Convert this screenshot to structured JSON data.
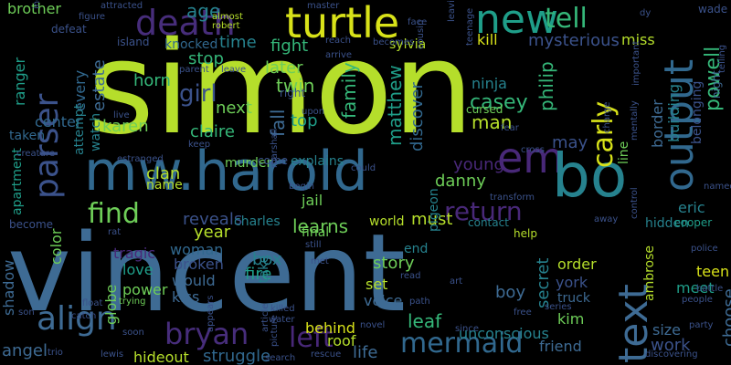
{
  "palette": {
    "background": "#000000",
    "lime": "#b5de2b",
    "yellowgreen": "#d8e219",
    "green": "#6ece58",
    "teal": "#1f9e89",
    "teal2": "#26828e",
    "blue": "#3e6b94",
    "steel": "#31688e",
    "indigo": "#472d7b",
    "purple": "#482878",
    "darkpurple": "#440154",
    "navy": "#3b528b",
    "seafoam": "#35b779"
  },
  "words": [
    {
      "text": "simon",
      "color": "#b5de2b"
    },
    {
      "text": "vincent",
      "color": "#3e6b94"
    },
    {
      "text": "mw.harold",
      "color": "#31688e"
    },
    {
      "text": "turtle",
      "color": "#d8e219"
    },
    {
      "text": "death",
      "color": "#472d7b"
    },
    {
      "text": "new",
      "color": "#1f9e89"
    },
    {
      "text": "tell",
      "color": "#35b779"
    },
    {
      "text": "parser",
      "color": "#3b528b"
    },
    {
      "text": "output",
      "color": "#31688e"
    },
    {
      "text": "em",
      "color": "#482878"
    },
    {
      "text": "bo",
      "color": "#26828e"
    },
    {
      "text": "text",
      "color": "#3e6b94"
    },
    {
      "text": "find",
      "color": "#6ece58"
    },
    {
      "text": "return",
      "color": "#482878"
    },
    {
      "text": "carly",
      "color": "#d8e219"
    },
    {
      "text": "align",
      "color": "#3e6b94"
    },
    {
      "text": "bryan",
      "color": "#472d7b"
    },
    {
      "text": "mermaid",
      "color": "#31688e"
    },
    {
      "text": "left",
      "color": "#482878"
    },
    {
      "text": "girl",
      "color": "#3b528b"
    },
    {
      "text": "brother",
      "color": "#6ece58"
    },
    {
      "text": "fight",
      "color": "#35b779"
    },
    {
      "text": "kill",
      "color": "#d8e219"
    },
    {
      "text": "mysterious",
      "color": "#3b528b"
    },
    {
      "text": "miss",
      "color": "#b5de2b"
    },
    {
      "text": "powell",
      "color": "#35b779"
    },
    {
      "text": "age",
      "color": "#26828e"
    },
    {
      "text": "stop",
      "color": "#35b779"
    },
    {
      "text": "time",
      "color": "#26828e"
    },
    {
      "text": "later",
      "color": "#6ece58"
    },
    {
      "text": "twin",
      "color": "#6ece58"
    },
    {
      "text": "top",
      "color": "#1f9e89"
    },
    {
      "text": "fall",
      "color": "#3e6b94"
    },
    {
      "text": "family",
      "color": "#35b779"
    },
    {
      "text": "matthew",
      "color": "#1f9e89"
    },
    {
      "text": "discover",
      "color": "#31688e"
    },
    {
      "text": "ninja",
      "color": "#26828e"
    },
    {
      "text": "casey",
      "color": "#35b779"
    },
    {
      "text": "man",
      "color": "#b5de2b"
    },
    {
      "text": "philip",
      "color": "#35b779"
    },
    {
      "text": "horn",
      "color": "#35b779"
    },
    {
      "text": "next",
      "color": "#6ece58"
    },
    {
      "text": "claire",
      "color": "#35b779"
    },
    {
      "text": "karen",
      "color": "#6ece58"
    },
    {
      "text": "center",
      "color": "#31688e"
    },
    {
      "text": "ranger",
      "color": "#1f9e89"
    },
    {
      "text": "every",
      "color": "#31688e"
    },
    {
      "text": "estate",
      "color": "#3e6b94"
    },
    {
      "text": "watch",
      "color": "#26828e"
    },
    {
      "text": "attempt",
      "color": "#26828e"
    },
    {
      "text": "apartment",
      "color": "#1f9e89"
    },
    {
      "text": "may",
      "color": "#3b528b"
    },
    {
      "text": "young",
      "color": "#482878"
    },
    {
      "text": "danny",
      "color": "#6ece58"
    },
    {
      "text": "border",
      "color": "#3e6b94"
    },
    {
      "text": "building",
      "color": "#26828e"
    },
    {
      "text": "belonging",
      "color": "#3b528b"
    },
    {
      "text": "line",
      "color": "#6ece58"
    },
    {
      "text": "murder",
      "color": "#6ece58"
    },
    {
      "text": "clan",
      "color": "#b5de2b"
    },
    {
      "text": "name",
      "color": "#b5de2b"
    },
    {
      "text": "explains",
      "color": "#26828e"
    },
    {
      "text": "jail",
      "color": "#6ece58"
    },
    {
      "text": "learns",
      "color": "#6ece58"
    },
    {
      "text": "reveals",
      "color": "#3b528b"
    },
    {
      "text": "charles",
      "color": "#26828e"
    },
    {
      "text": "world",
      "color": "#b5de2b"
    },
    {
      "text": "must",
      "color": "#b5de2b"
    },
    {
      "text": "contact",
      "color": "#26828e"
    },
    {
      "text": "hidden",
      "color": "#26828e"
    },
    {
      "text": "eric",
      "color": "#26828e"
    },
    {
      "text": "cooper",
      "color": "#1f9e89"
    },
    {
      "text": "year",
      "color": "#b5de2b"
    },
    {
      "text": "woman",
      "color": "#31688e"
    },
    {
      "text": "tragic",
      "color": "#482878"
    },
    {
      "text": "broken",
      "color": "#3b528b"
    },
    {
      "text": "love",
      "color": "#1f9e89"
    },
    {
      "text": "power",
      "color": "#6ece58"
    },
    {
      "text": "would",
      "color": "#3e6b94"
    },
    {
      "text": "kiss",
      "color": "#3e6b94"
    },
    {
      "text": "fire",
      "color": "#1f9e89"
    },
    {
      "text": "box",
      "color": "#26828e"
    },
    {
      "text": "take",
      "color": "#26828e"
    },
    {
      "text": "behind",
      "color": "#d8e219"
    },
    {
      "text": "roof",
      "color": "#b5de2b"
    },
    {
      "text": "story",
      "color": "#6ece58"
    },
    {
      "text": "set",
      "color": "#b5de2b"
    },
    {
      "text": "voice",
      "color": "#3e6b94"
    },
    {
      "text": "leaf",
      "color": "#35b779"
    },
    {
      "text": "end",
      "color": "#26828e"
    },
    {
      "text": "boy",
      "color": "#3e6b94"
    },
    {
      "text": "secret",
      "color": "#26828e"
    },
    {
      "text": "order",
      "color": "#b5de2b"
    },
    {
      "text": "york",
      "color": "#3b528b"
    },
    {
      "text": "truck",
      "color": "#3e6b94"
    },
    {
      "text": "kim",
      "color": "#6ece58"
    },
    {
      "text": "unconscious",
      "color": "#26828e"
    },
    {
      "text": "friend",
      "color": "#3e6b94"
    },
    {
      "text": "life",
      "color": "#3e6b94"
    },
    {
      "text": "meet",
      "color": "#1f9e89"
    },
    {
      "text": "teen",
      "color": "#d8e219"
    },
    {
      "text": "size",
      "color": "#3e6b94"
    },
    {
      "text": "work",
      "color": "#3b528b"
    },
    {
      "text": "choose",
      "color": "#3e6b94"
    },
    {
      "text": "ambrose",
      "color": "#b5de2b"
    },
    {
      "text": "shadow",
      "color": "#3e6b94"
    },
    {
      "text": "color",
      "color": "#6ece58"
    },
    {
      "text": "angel",
      "color": "#3e6b94"
    },
    {
      "text": "globe",
      "color": "#6ece58"
    },
    {
      "text": "struggle",
      "color": "#31688e"
    },
    {
      "text": "hideout",
      "color": "#b5de2b"
    },
    {
      "text": "become",
      "color": "#3b528b"
    },
    {
      "text": "knocked",
      "color": "#31688e"
    },
    {
      "text": "sylvia",
      "color": "#b5de2b"
    },
    {
      "text": "pigeon",
      "color": "#26828e"
    },
    {
      "text": "cursed",
      "color": "#6ece58"
    },
    {
      "text": "help",
      "color": "#b5de2b"
    },
    {
      "text": "taken",
      "color": "#31688e"
    },
    {
      "text": "island",
      "color": "#3b528b"
    },
    {
      "text": "defeat",
      "color": "#3b528b"
    },
    {
      "text": "figure",
      "color": "#3b528b"
    },
    {
      "text": "attracted",
      "color": "#3b528b"
    },
    {
      "text": "almost",
      "color": "#b5de2b"
    },
    {
      "text": "robert",
      "color": "#b5de2b"
    },
    {
      "text": "master",
      "color": "#3b528b"
    },
    {
      "text": "face",
      "color": "#3b528b"
    },
    {
      "text": "leaving",
      "color": "#3b528b"
    },
    {
      "text": "teenage",
      "color": "#3b528b"
    },
    {
      "text": "wade",
      "color": "#3b528b"
    },
    {
      "text": "night",
      "color": "#3e6b94"
    },
    {
      "text": "telling",
      "color": "#3b528b"
    },
    {
      "text": "named",
      "color": "#3b528b"
    },
    {
      "text": "police",
      "color": "#3b528b"
    },
    {
      "text": "people",
      "color": "#3b528b"
    },
    {
      "text": "party",
      "color": "#3b528b"
    },
    {
      "text": "discovering",
      "color": "#3b528b"
    },
    {
      "text": "rescue",
      "color": "#3b528b"
    },
    {
      "text": "search",
      "color": "#3b528b"
    },
    {
      "text": "trio",
      "color": "#3b528b"
    },
    {
      "text": "lewis",
      "color": "#3b528b"
    },
    {
      "text": "son",
      "color": "#3b528b"
    },
    {
      "text": "soon",
      "color": "#3b528b"
    },
    {
      "text": "catch",
      "color": "#3b528b"
    },
    {
      "text": "float",
      "color": "#3b528b"
    },
    {
      "text": "trying",
      "color": "#6ece58"
    },
    {
      "text": "appears",
      "color": "#3b528b"
    },
    {
      "text": "killed",
      "color": "#3b528b"
    },
    {
      "text": "article",
      "color": "#3b528b"
    },
    {
      "text": "picture",
      "color": "#3b528b"
    },
    {
      "text": "water",
      "color": "#3b528b"
    },
    {
      "text": "free",
      "color": "#3b528b"
    },
    {
      "text": "series",
      "color": "#3b528b"
    },
    {
      "text": "since",
      "color": "#3b528b"
    },
    {
      "text": "path",
      "color": "#3b528b"
    },
    {
      "text": "read",
      "color": "#3b528b"
    },
    {
      "text": "novel",
      "color": "#3b528b"
    },
    {
      "text": "art",
      "color": "#3b528b"
    },
    {
      "text": "still",
      "color": "#3b528b"
    },
    {
      "text": "met",
      "color": "#3b528b"
    },
    {
      "text": "rat",
      "color": "#3b528b"
    },
    {
      "text": "creature",
      "color": "#3b528b"
    },
    {
      "text": "estranged",
      "color": "#3b528b"
    },
    {
      "text": "keep",
      "color": "#3b528b"
    },
    {
      "text": "parent",
      "color": "#3b528b"
    },
    {
      "text": "leave",
      "color": "#3b528b"
    },
    {
      "text": "arrive",
      "color": "#3b528b"
    },
    {
      "text": "reach",
      "color": "#3b528b"
    },
    {
      "text": "becomes",
      "color": "#3b528b"
    },
    {
      "text": "cousin",
      "color": "#3b528b"
    },
    {
      "text": "fear",
      "color": "#3b528b"
    },
    {
      "text": "cross",
      "color": "#3b528b"
    },
    {
      "text": "could",
      "color": "#3b528b"
    },
    {
      "text": "transform",
      "color": "#3b528b"
    },
    {
      "text": "away",
      "color": "#3b528b"
    },
    {
      "text": "important",
      "color": "#3b528b"
    },
    {
      "text": "mentally",
      "color": "#3b528b"
    },
    {
      "text": "charge",
      "color": "#3b528b"
    },
    {
      "text": "control",
      "color": "#3b528b"
    },
    {
      "text": "battle",
      "color": "#3b528b"
    },
    {
      "text": "live",
      "color": "#3b528b"
    },
    {
      "text": "come",
      "color": "#3b528b"
    },
    {
      "text": "marshall",
      "color": "#3b528b"
    },
    {
      "text": "begin",
      "color": "#3b528b"
    },
    {
      "text": "upon",
      "color": "#3b528b"
    },
    {
      "text": "right",
      "color": "#3b528b"
    },
    {
      "text": "dy",
      "color": "#3b528b"
    },
    {
      "text": "including",
      "color": "#3b528b"
    },
    {
      "text": "final",
      "color": "#6ece58"
    }
  ]
}
